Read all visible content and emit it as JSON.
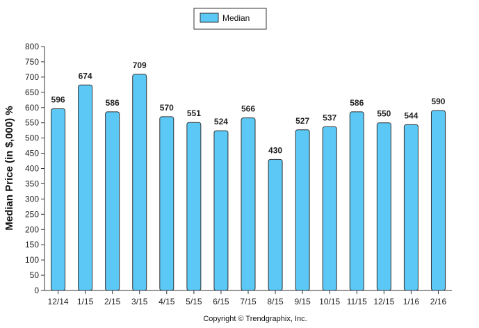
{
  "chart_data": {
    "type": "bar",
    "categories": [
      "12/14",
      "1/15",
      "2/15",
      "3/15",
      "4/15",
      "5/15",
      "6/15",
      "7/15",
      "8/15",
      "9/15",
      "10/15",
      "11/15",
      "12/15",
      "1/16",
      "2/16"
    ],
    "series": [
      {
        "name": "Median",
        "values": [
          596,
          674,
          586,
          709,
          570,
          551,
          524,
          566,
          430,
          527,
          537,
          586,
          550,
          544,
          590
        ],
        "color": "#5bc8f5"
      }
    ],
    "ylabel": "Median Price (in $,000) %",
    "ylim": [
      0,
      800
    ],
    "yticks": [
      0,
      50,
      100,
      150,
      200,
      250,
      300,
      350,
      400,
      450,
      500,
      550,
      600,
      650,
      700,
      750,
      800
    ],
    "data_labels": true,
    "legend_position": "top-center",
    "grid": false,
    "copyright": "Copyright © Trendgraphix, Inc."
  }
}
